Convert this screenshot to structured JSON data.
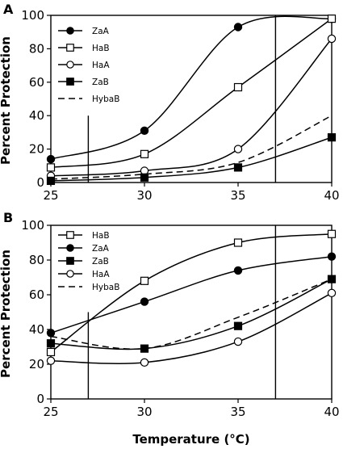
{
  "chart_data": [
    {
      "type": "line",
      "panel_label": "A",
      "ylabel": "Percent Protection",
      "xlim": [
        25,
        40
      ],
      "ylim": [
        0,
        100
      ],
      "x_ticks": [
        25,
        30,
        35,
        40
      ],
      "y_ticks": [
        0,
        20,
        40,
        60,
        80,
        100
      ],
      "grid": false,
      "legend_position": "top-left",
      "vertical_lines": [
        {
          "x": 27,
          "y_range": [
            0,
            40
          ]
        },
        {
          "x": 37,
          "y_range": [
            0,
            100
          ]
        }
      ],
      "series": [
        {
          "name": "ZaA",
          "marker": "filled-circle",
          "line": "solid",
          "x": [
            25,
            30,
            35,
            40
          ],
          "values": [
            14,
            31,
            93,
            98
          ]
        },
        {
          "name": "HaB",
          "marker": "open-square",
          "line": "solid",
          "x": [
            25,
            30,
            35,
            40
          ],
          "values": [
            9,
            17,
            57,
            98
          ]
        },
        {
          "name": "HaA",
          "marker": "open-circle",
          "line": "solid",
          "x": [
            25,
            30,
            35,
            40
          ],
          "values": [
            4,
            7,
            20,
            86
          ]
        },
        {
          "name": "ZaB",
          "marker": "filled-square",
          "line": "solid",
          "x": [
            25,
            30,
            35,
            40
          ],
          "values": [
            1,
            3,
            9,
            27
          ]
        },
        {
          "name": "HybaB",
          "marker": "none",
          "line": "dashed",
          "x": [
            25,
            30,
            35,
            40
          ],
          "values": [
            2,
            5,
            12,
            40
          ]
        }
      ]
    },
    {
      "type": "line",
      "panel_label": "B",
      "ylabel": "Percent Protection",
      "xlabel": "Temperature (°C)",
      "xlim": [
        25,
        40
      ],
      "ylim": [
        0,
        100
      ],
      "x_ticks": [
        25,
        30,
        35,
        40
      ],
      "y_ticks": [
        0,
        20,
        40,
        60,
        80,
        100
      ],
      "grid": false,
      "legend_position": "top-left",
      "vertical_lines": [
        {
          "x": 27,
          "y_range": [
            0,
            50
          ]
        },
        {
          "x": 37,
          "y_range": [
            0,
            100
          ]
        }
      ],
      "series": [
        {
          "name": "HaB",
          "marker": "open-square",
          "line": "solid",
          "x": [
            25,
            30,
            35,
            40
          ],
          "values": [
            27,
            68,
            90,
            95
          ]
        },
        {
          "name": "ZaA",
          "marker": "filled-circle",
          "line": "solid",
          "x": [
            25,
            30,
            35,
            40
          ],
          "values": [
            38,
            56,
            74,
            82
          ]
        },
        {
          "name": "ZaB",
          "marker": "filled-square",
          "line": "solid",
          "x": [
            25,
            30,
            35,
            40
          ],
          "values": [
            32,
            29,
            42,
            69
          ]
        },
        {
          "name": "HaA",
          "marker": "open-circle",
          "line": "solid",
          "x": [
            25,
            30,
            35,
            40
          ],
          "values": [
            22,
            21,
            33,
            61
          ]
        },
        {
          "name": "HybaB",
          "marker": "none",
          "line": "dashed",
          "x": [
            25,
            30,
            35,
            40
          ],
          "values": [
            36,
            29,
            47,
            69
          ]
        }
      ]
    }
  ]
}
